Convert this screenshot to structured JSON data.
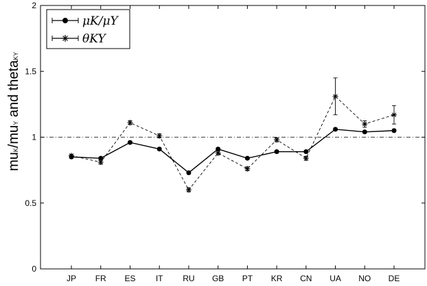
{
  "chart_data": {
    "type": "line",
    "categories": [
      "JP",
      "FR",
      "ES",
      "IT",
      "RU",
      "GB",
      "PT",
      "KR",
      "CN",
      "UA",
      "NO",
      "DE"
    ],
    "ylim": [
      0,
      2
    ],
    "yticks": [
      0,
      0.5,
      1,
      1.5,
      2
    ],
    "ytick_labels": [
      "0",
      "0.5",
      "1",
      "1.5",
      "2"
    ],
    "ylabel": {
      "parts": [
        "mu",
        "K",
        "/mu",
        "Y",
        " and theta",
        "KY"
      ]
    },
    "grid": false,
    "legend_placement": "top-left",
    "reference_line": {
      "y": 1,
      "style": "dash-dot"
    },
    "series": [
      {
        "name": "μK/μY",
        "marker": "filled-circle",
        "line": "solid",
        "values": [
          0.85,
          0.84,
          0.96,
          0.91,
          0.73,
          0.91,
          0.84,
          0.89,
          0.89,
          1.06,
          1.04,
          1.05
        ],
        "errors": [
          0.01,
          0.01,
          0.01,
          0.01,
          0.01,
          0.01,
          0.01,
          0.01,
          0.01,
          0.01,
          0.01,
          0.01
        ]
      },
      {
        "name": "θKY",
        "marker": "asterisk",
        "line": "dashed",
        "values": [
          0.86,
          0.81,
          1.11,
          1.01,
          0.6,
          0.88,
          0.76,
          0.98,
          0.84,
          1.31,
          1.1,
          1.17
        ],
        "errors": [
          0.01,
          0.015,
          0.015,
          0.015,
          0.015,
          0.015,
          0.015,
          0.015,
          0.015,
          0.14,
          0.025,
          0.07
        ]
      }
    ],
    "colors": {
      "axis": "#000000",
      "series": "#000000"
    }
  }
}
